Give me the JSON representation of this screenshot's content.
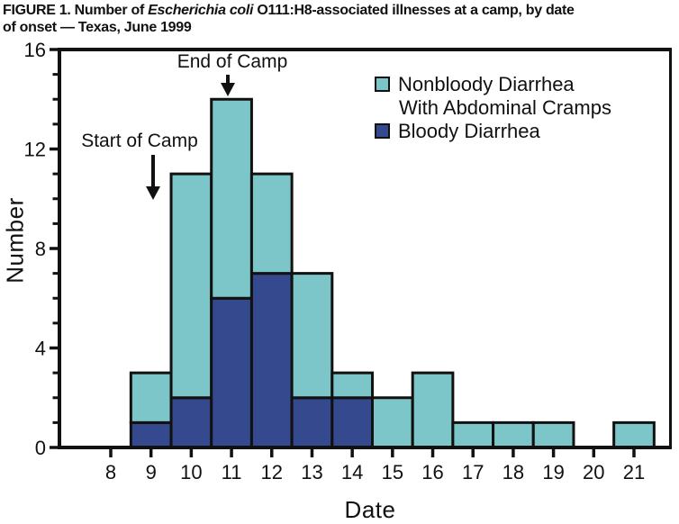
{
  "title": {
    "prefix": "FIGURE 1. Number of ",
    "italic": "Escherichia coli",
    "suffix": " O111:H8-associated illnesses at a camp, by date",
    "line2": "of onset — Texas, June 1999"
  },
  "chart_data": {
    "type": "bar",
    "stacked": true,
    "title": "FIGURE 1. Number of Escherichia coli O111:H8-associated illnesses at a camp, by date of onset — Texas, June 1999",
    "xlabel": "Date",
    "ylabel": "Number",
    "categories": [
      8,
      9,
      10,
      11,
      12,
      13,
      14,
      15,
      16,
      17,
      18,
      19,
      20,
      21
    ],
    "series": [
      {
        "name": "Bloody Diarrhea",
        "color": "#35498E",
        "values": [
          0,
          1,
          2,
          6,
          7,
          2,
          2,
          0,
          0,
          0,
          0,
          0,
          0,
          0
        ]
      },
      {
        "name": "Nonbloody Diarrhea With Abdominal Cramps",
        "color": "#7CC5C8",
        "values": [
          0,
          2,
          9,
          8,
          4,
          5,
          1,
          2,
          3,
          1,
          1,
          1,
          0,
          1
        ]
      }
    ],
    "ylim": [
      0,
      16
    ],
    "y_major_ticks": [
      0,
      4,
      8,
      12,
      16
    ],
    "y_minor_step": 1,
    "grid": false,
    "legend_position": "upper right",
    "legend": [
      {
        "label_line1": "Nonbloody Diarrhea",
        "label_line2": "With Abdominal Cramps",
        "color": "#7CC5C8"
      },
      {
        "label_line1": "Bloody Diarrhea",
        "color": "#35498E"
      }
    ],
    "annotations": [
      {
        "text": "Start of Camp",
        "target_date": 9
      },
      {
        "text": "End of Camp",
        "target_date": 11
      }
    ]
  },
  "colors": {
    "nonbloody": "#7CC5C8",
    "bloody": "#35498E",
    "axis": "#111111"
  }
}
